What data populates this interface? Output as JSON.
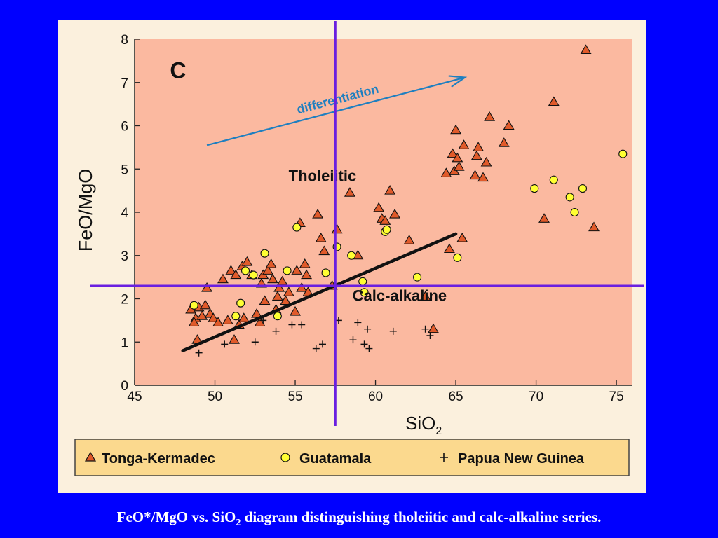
{
  "caption": {
    "text": "FeO*/MgO vs. SiO",
    "subscript": "2",
    "text_after": " diagram distinguishing tholeiitic and calc-alkaline series."
  },
  "chart_data": {
    "type": "scatter",
    "panel_label": "C",
    "xlabel": "SiO",
    "xlabel_subscript": "2",
    "ylabel": "FeO/MgO",
    "xlim": [
      45,
      76
    ],
    "ylim": [
      0,
      8
    ],
    "xticks": [
      45,
      50,
      55,
      60,
      65,
      70,
      75
    ],
    "yticks": [
      0,
      1,
      2,
      3,
      4,
      5,
      6,
      7,
      8
    ],
    "grid": false,
    "legend_position": "bottom",
    "region_labels": [
      {
        "text": "Tholeiitic",
        "x": 56.7,
        "y": 4.72
      },
      {
        "text": "Calc-alkaline",
        "x": 61.5,
        "y": 1.95
      }
    ],
    "arrow": {
      "label": "differentiation",
      "from": [
        49.5,
        5.55
      ],
      "to": [
        65.4,
        7.1
      ]
    },
    "divider_line": {
      "from": [
        48,
        0.8
      ],
      "to": [
        65,
        3.5
      ]
    },
    "crosshair": {
      "x": 57.5,
      "y": 2.3,
      "color": "#6a1fe0"
    },
    "colors": {
      "background": "#fbb9a0",
      "triangle": "#e05a2a",
      "circle": "#ffff33",
      "arrow": "#1e7fc0",
      "caption": "#ffffff",
      "slide": "#0000ff",
      "legend_bg": "#fbd98e"
    },
    "series": [
      {
        "name": "Tonga-Kermadec",
        "marker": "triangle",
        "points": [
          [
            48.5,
            1.75
          ],
          [
            48.8,
            1.55
          ],
          [
            48.7,
            1.45
          ],
          [
            49.0,
            1.8
          ],
          [
            49.2,
            1.6
          ],
          [
            49.4,
            1.85
          ],
          [
            49.5,
            2.25
          ],
          [
            49.7,
            1.65
          ],
          [
            49.9,
            1.55
          ],
          [
            48.9,
            1.05
          ],
          [
            50.2,
            1.45
          ],
          [
            50.5,
            2.45
          ],
          [
            50.8,
            1.5
          ],
          [
            51.0,
            2.65
          ],
          [
            51.2,
            1.05
          ],
          [
            51.3,
            2.55
          ],
          [
            51.5,
            1.4
          ],
          [
            51.7,
            2.75
          ],
          [
            51.8,
            1.55
          ],
          [
            52.0,
            2.85
          ],
          [
            52.3,
            2.55
          ],
          [
            52.6,
            1.65
          ],
          [
            52.8,
            1.45
          ],
          [
            52.9,
            2.35
          ],
          [
            53.0,
            2.55
          ],
          [
            53.1,
            1.95
          ],
          [
            53.3,
            2.65
          ],
          [
            53.5,
            2.8
          ],
          [
            53.6,
            2.45
          ],
          [
            53.8,
            1.75
          ],
          [
            53.9,
            2.05
          ],
          [
            54.0,
            2.25
          ],
          [
            54.2,
            2.4
          ],
          [
            54.4,
            1.95
          ],
          [
            54.6,
            2.15
          ],
          [
            55.0,
            1.7
          ],
          [
            55.1,
            2.65
          ],
          [
            55.3,
            3.75
          ],
          [
            55.4,
            2.25
          ],
          [
            55.6,
            2.8
          ],
          [
            55.7,
            2.55
          ],
          [
            55.8,
            2.15
          ],
          [
            56.4,
            3.95
          ],
          [
            56.6,
            3.4
          ],
          [
            56.8,
            3.1
          ],
          [
            57.3,
            2.3
          ],
          [
            57.6,
            3.6
          ],
          [
            58.4,
            4.45
          ],
          [
            58.9,
            3.0
          ],
          [
            60.2,
            4.1
          ],
          [
            60.4,
            3.85
          ],
          [
            60.6,
            3.8
          ],
          [
            60.9,
            4.5
          ],
          [
            61.2,
            3.95
          ],
          [
            62.1,
            3.35
          ],
          [
            63.1,
            2.05
          ],
          [
            63.6,
            1.3
          ],
          [
            64.4,
            4.9
          ],
          [
            64.6,
            3.15
          ],
          [
            64.9,
            4.95
          ],
          [
            64.8,
            5.35
          ],
          [
            65.1,
            5.25
          ],
          [
            65.2,
            5.05
          ],
          [
            65.0,
            5.9
          ],
          [
            65.4,
            3.4
          ],
          [
            65.5,
            5.55
          ],
          [
            66.2,
            4.85
          ],
          [
            66.3,
            5.3
          ],
          [
            66.4,
            5.5
          ],
          [
            66.7,
            4.8
          ],
          [
            66.9,
            5.15
          ],
          [
            67.1,
            6.2
          ],
          [
            68.0,
            5.6
          ],
          [
            68.3,
            6.0
          ],
          [
            70.5,
            3.85
          ],
          [
            71.1,
            6.55
          ],
          [
            73.1,
            7.75
          ],
          [
            73.6,
            3.65
          ]
        ]
      },
      {
        "name": "Guatamala",
        "marker": "circle",
        "points": [
          [
            48.7,
            1.85
          ],
          [
            51.3,
            1.6
          ],
          [
            51.6,
            1.9
          ],
          [
            51.9,
            2.65
          ],
          [
            52.4,
            2.55
          ],
          [
            53.1,
            3.05
          ],
          [
            53.9,
            1.6
          ],
          [
            54.5,
            2.65
          ],
          [
            55.1,
            3.65
          ],
          [
            56.9,
            2.6
          ],
          [
            57.6,
            3.2
          ],
          [
            58.5,
            3.0
          ],
          [
            59.2,
            2.4
          ],
          [
            59.3,
            2.15
          ],
          [
            60.6,
            3.55
          ],
          [
            60.7,
            3.6
          ],
          [
            62.6,
            2.5
          ],
          [
            65.1,
            2.95
          ],
          [
            69.9,
            4.55
          ],
          [
            71.1,
            4.75
          ],
          [
            72.1,
            4.35
          ],
          [
            72.4,
            4.0
          ],
          [
            72.9,
            4.55
          ],
          [
            75.4,
            5.35
          ]
        ]
      },
      {
        "name": "Papua New Guinea",
        "marker": "plus",
        "points": [
          [
            49.0,
            0.75
          ],
          [
            50.6,
            0.95
          ],
          [
            52.5,
            1.0
          ],
          [
            53.0,
            1.5
          ],
          [
            53.8,
            1.25
          ],
          [
            54.8,
            1.4
          ],
          [
            55.4,
            1.4
          ],
          [
            56.3,
            0.85
          ],
          [
            56.7,
            0.95
          ],
          [
            57.7,
            1.5
          ],
          [
            58.6,
            1.05
          ],
          [
            58.9,
            1.45
          ],
          [
            59.3,
            0.95
          ],
          [
            59.5,
            1.3
          ],
          [
            59.6,
            0.85
          ],
          [
            61.1,
            1.25
          ],
          [
            63.1,
            1.3
          ],
          [
            63.4,
            1.15
          ]
        ]
      }
    ]
  }
}
